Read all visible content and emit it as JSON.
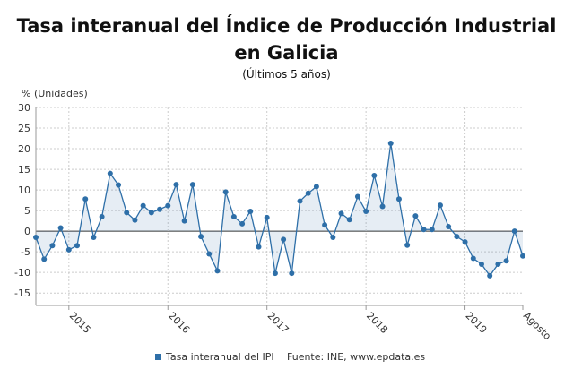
{
  "chart_data": {
    "type": "line",
    "title": "Tasa interanual del Índice de Producción Industrial en Galicia",
    "subtitle": "(Últimos 5 años)",
    "y_label": "% (Unidades)",
    "source": "Fuente: INE, www.epdata.es",
    "categories": [
      null,
      null,
      null,
      null,
      "2015",
      null,
      null,
      null,
      null,
      null,
      null,
      null,
      null,
      null,
      null,
      null,
      "2016",
      null,
      null,
      null,
      null,
      null,
      null,
      null,
      null,
      null,
      null,
      null,
      "2017",
      null,
      null,
      null,
      null,
      null,
      null,
      null,
      null,
      null,
      null,
      null,
      "2018",
      null,
      null,
      null,
      null,
      null,
      null,
      null,
      null,
      null,
      null,
      null,
      "2019",
      null,
      null,
      null,
      null,
      null,
      null,
      "Agosto"
    ],
    "series": [
      {
        "name": "Tasa interanual del IPI",
        "color": "#2e6fa8",
        "values": [
          -1.5,
          -6.8,
          -3.5,
          0.8,
          -4.5,
          -3.5,
          7.8,
          -1.5,
          3.5,
          14,
          11.2,
          4.5,
          2.7,
          6.2,
          4.5,
          5.3,
          6.2,
          11.3,
          2.5,
          11.3,
          -1.3,
          -5.5,
          -9.6,
          9.5,
          3.5,
          1.8,
          4.8,
          -3.8,
          3.3,
          -10.2,
          -2,
          -10.2,
          7.3,
          9.2,
          10.8,
          1.5,
          -1.5,
          4.3,
          2.8,
          8.4,
          4.8,
          13.5,
          6,
          21.3,
          7.8,
          -3.4,
          3.7,
          0.4,
          0.4,
          6.3,
          1.1,
          -1.3,
          -2.6,
          -6.6,
          -8,
          -10.8,
          -8,
          -7.2,
          0,
          -6
        ]
      }
    ],
    "ylim": [
      -18,
      30
    ],
    "yticks": [
      -15,
      -10,
      -5,
      0,
      5,
      10,
      15,
      20,
      25,
      30
    ],
    "grid": true
  }
}
